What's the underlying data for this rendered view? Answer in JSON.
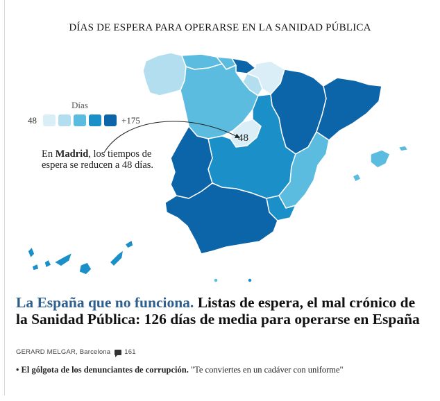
{
  "map": {
    "title": "DÍAS DE ESPERA PARA OPERARSE EN LA SANIDAD PÚBLICA",
    "legend": {
      "title": "Días",
      "min_label": "48",
      "max_label": "+175",
      "colors": [
        "#d9eef7",
        "#b2def0",
        "#5bbcdf",
        "#1a8fc8",
        "#0d65a9"
      ]
    },
    "annotation": {
      "prefix": "En ",
      "highlight": "Madrid",
      "suffix": ", los tiempos de espera se reducen a 48 días."
    },
    "madrid_value": "48"
  },
  "article": {
    "kicker": "La España que no funciona.",
    "headline": " Listas de espera, el mal crónico de la Sanidad Pública: 126 días de media para operarse en España",
    "author": "GERARD MELGAR",
    "location": ", Barcelona",
    "comments": "161",
    "related_bullet": "•",
    "related_title": "El gólgota de los denunciantes de corrupción.",
    "related_quote": "\"Te conviertes en un cadáver con uniforme\""
  }
}
